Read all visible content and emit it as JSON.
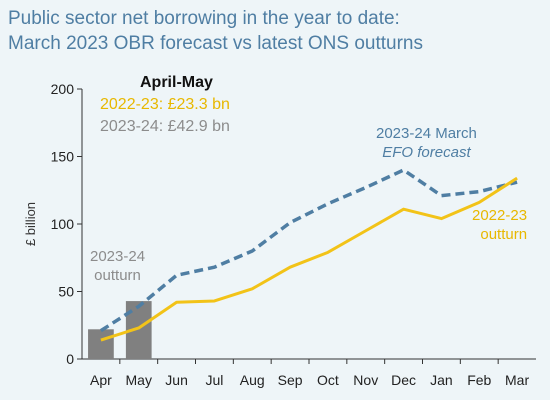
{
  "title_line1": "Public sector net borrowing in the year to date:",
  "title_line2": "March 2023 OBR forecast vs latest ONS outturns",
  "legend": {
    "heading": "April-May",
    "line1": "2022-23: £23.3 bn",
    "line2": "2023-24: £42.9 bn"
  },
  "annotations": {
    "efo_line1": "2023-24 March",
    "efo_line2": "EFO forecast",
    "outturn_line1": "2022-23",
    "outturn_line2": "outturn",
    "bar_line1": "2023-24",
    "bar_line2": "outturn"
  },
  "colors": {
    "title": "#4f7ea3",
    "forecast_line": "#4f7ea3",
    "outturn_line": "#f2c318",
    "bars": "#808080",
    "axis": "#333333"
  },
  "chart_data": {
    "type": "line",
    "title": "Public sector net borrowing in the year to date: March 2023 OBR forecast vs latest ONS outturns",
    "xlabel": "",
    "ylabel": "£ billion",
    "categories": [
      "Apr",
      "May",
      "Jun",
      "Jul",
      "Aug",
      "Sep",
      "Oct",
      "Nov",
      "Dec",
      "Jan",
      "Feb",
      "Mar"
    ],
    "ylim": [
      0,
      200
    ],
    "yticks": [
      0,
      50,
      100,
      150,
      200
    ],
    "grid": false,
    "series": [
      {
        "name": "2023-24 March EFO forecast",
        "kind": "line",
        "style": "dashed",
        "values": [
          21,
          39,
          62,
          68,
          80,
          101,
          115,
          127,
          140,
          121,
          124,
          131
        ]
      },
      {
        "name": "2022-23 outturn",
        "kind": "line",
        "style": "solid",
        "values": [
          14,
          23,
          42,
          43,
          52,
          68,
          79,
          95,
          111,
          104,
          116,
          134
        ]
      },
      {
        "name": "2023-24 outturn",
        "kind": "bar",
        "values": [
          22,
          42.9,
          null,
          null,
          null,
          null,
          null,
          null,
          null,
          null,
          null,
          null
        ]
      }
    ]
  }
}
